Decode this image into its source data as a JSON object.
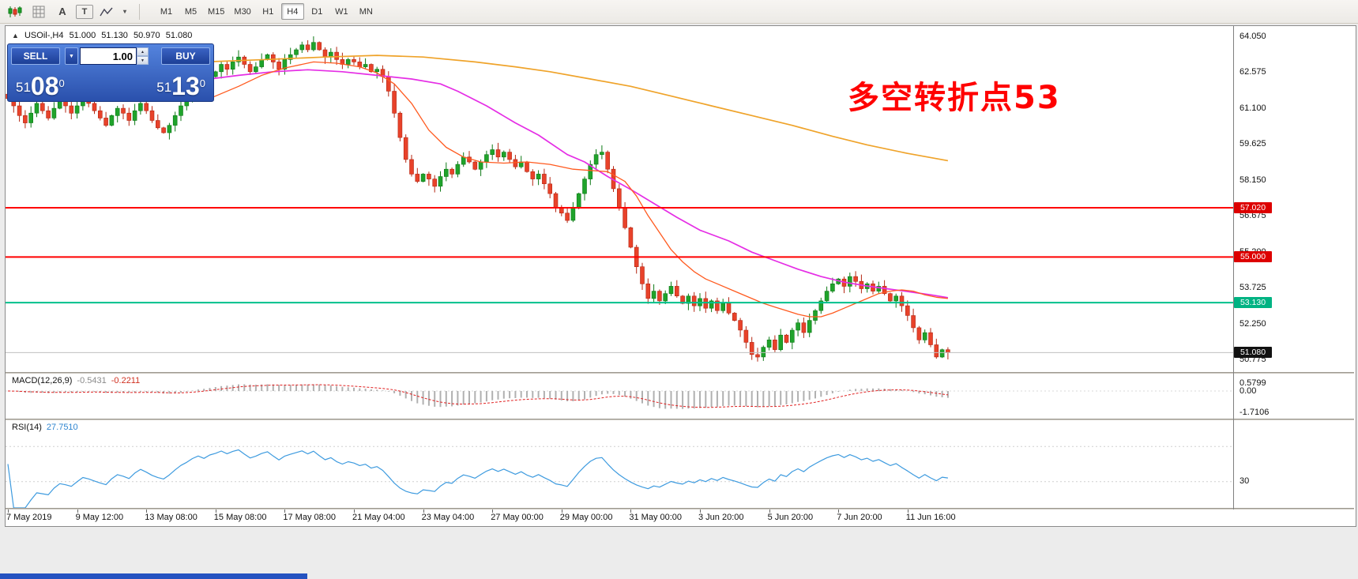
{
  "toolbar": {
    "icons": [
      {
        "name": "candles-icon"
      },
      {
        "name": "grid-icon"
      },
      {
        "name": "text-a-icon",
        "glyph": "A"
      },
      {
        "name": "textbox-t-icon",
        "glyph": "T"
      },
      {
        "name": "line-studies-icon"
      },
      {
        "name": "dropdown-arrow-icon",
        "glyph": "▾"
      }
    ],
    "timeframes": [
      "M1",
      "M5",
      "M15",
      "M30",
      "H1",
      "H4",
      "D1",
      "W1",
      "MN"
    ],
    "active_timeframe": "H4"
  },
  "one_click": {
    "sell_label": "SELL",
    "buy_label": "BUY",
    "volume": "1.00",
    "dropdown_glyph": "▼",
    "spin_up": "▲",
    "spin_down": "▼",
    "sell_small": "51",
    "sell_big": "08",
    "sell_sup": "0",
    "buy_small": "51",
    "buy_big": "13",
    "buy_sup": "0"
  },
  "chart_header": {
    "collapse_glyph": "▲",
    "symbol": "USOil-,H4",
    "open": "51.000",
    "high": "51.130",
    "low": "50.970",
    "close": "51.080"
  },
  "annotation": {
    "text": "多空转折点53",
    "color": "#ff0000"
  },
  "price_axis": {
    "labels": [
      "64.050",
      "62.575",
      "61.100",
      "59.625",
      "58.150",
      "56.675",
      "55.200",
      "53.725",
      "52.250",
      "50.775"
    ]
  },
  "chart_data": {
    "type": "candlestick",
    "symbol": "USOil",
    "timeframe": "H4",
    "up_color": "#1fa32b",
    "up_stroke": "#0e7a16",
    "down_color": "#e8422a",
    "down_stroke": "#b52713",
    "closes": [
      61.5,
      61.2,
      60.8,
      60.5,
      60.9,
      61.3,
      61.0,
      60.7,
      61.1,
      61.4,
      61.2,
      60.9,
      61.2,
      61.5,
      61.3,
      61.0,
      60.7,
      60.4,
      60.8,
      61.1,
      60.9,
      60.6,
      61.0,
      61.3,
      61.0,
      60.6,
      60.3,
      60.1,
      60.4,
      60.8,
      61.2,
      61.5,
      61.9,
      62.2,
      62.0,
      62.4,
      62.6,
      62.9,
      62.7,
      63.0,
      63.2,
      62.9,
      62.6,
      62.8,
      63.1,
      63.3,
      63.0,
      62.7,
      63.1,
      63.3,
      63.5,
      63.7,
      63.5,
      63.8,
      63.5,
      63.2,
      63.4,
      63.1,
      62.9,
      63.1,
      63.0,
      62.8,
      62.9,
      62.6,
      62.7,
      62.4,
      61.8,
      60.9,
      59.9,
      59.0,
      58.4,
      58.1,
      58.4,
      58.2,
      57.9,
      58.3,
      58.6,
      58.4,
      58.8,
      59.1,
      58.9,
      58.6,
      58.9,
      59.2,
      59.4,
      59.1,
      59.3,
      59.0,
      58.7,
      58.9,
      58.5,
      58.2,
      58.4,
      58.0,
      57.6,
      57.0,
      56.8,
      56.5,
      57.0,
      57.6,
      58.2,
      58.8,
      59.2,
      59.3,
      58.6,
      57.8,
      57.0,
      56.2,
      55.4,
      54.6,
      53.9,
      53.3,
      53.6,
      53.2,
      53.5,
      53.8,
      53.4,
      53.1,
      53.4,
      53.0,
      53.3,
      52.9,
      53.2,
      52.8,
      53.1,
      52.7,
      52.4,
      52.0,
      51.5,
      51.0,
      50.9,
      51.3,
      51.6,
      51.2,
      51.8,
      51.5,
      52.0,
      52.3,
      51.9,
      52.4,
      52.8,
      53.2,
      53.6,
      53.9,
      54.1,
      53.8,
      54.2,
      54.0,
      53.7,
      53.9,
      53.6,
      53.8,
      53.5,
      53.2,
      53.4,
      53.0,
      52.6,
      52.1,
      51.6,
      51.9,
      51.4,
      50.9,
      51.2,
      51.08
    ],
    "last_ohlc": {
      "open": 51.0,
      "high": 51.13,
      "low": 50.97,
      "close": 51.08
    },
    "moving_averages": [
      {
        "name": "slow-ma",
        "color": "#efa32a",
        "width": 1.7,
        "points": [
          [
            34,
            63.0
          ],
          [
            45,
            63.1
          ],
          [
            55,
            63.2
          ],
          [
            64,
            63.27
          ],
          [
            72,
            63.2
          ],
          [
            81,
            63.0
          ],
          [
            88,
            62.8
          ],
          [
            94,
            62.6
          ],
          [
            101,
            62.3
          ],
          [
            108,
            62.0
          ],
          [
            115,
            61.6
          ],
          [
            122,
            61.2
          ],
          [
            129,
            60.8
          ],
          [
            136,
            60.4
          ],
          [
            143,
            59.95
          ],
          [
            149,
            59.6
          ],
          [
            156,
            59.25
          ],
          [
            163,
            58.95
          ]
        ]
      },
      {
        "name": "mid-ma",
        "color": "#e52ee5",
        "width": 1.7,
        "points": [
          [
            35,
            62.3
          ],
          [
            40,
            62.45
          ],
          [
            46,
            62.6
          ],
          [
            52,
            62.68
          ],
          [
            58,
            62.6
          ],
          [
            64,
            62.45
          ],
          [
            70,
            62.3
          ],
          [
            75,
            62.1
          ],
          [
            78,
            61.8
          ],
          [
            83,
            61.2
          ],
          [
            88,
            60.5
          ],
          [
            92,
            60.0
          ],
          [
            97,
            59.2
          ],
          [
            100,
            58.9
          ],
          [
            104,
            58.3
          ],
          [
            108,
            57.77
          ],
          [
            112,
            57.2
          ],
          [
            116,
            56.63
          ],
          [
            120,
            56.1
          ],
          [
            125,
            55.66
          ],
          [
            129,
            55.2
          ],
          [
            133,
            54.85
          ],
          [
            137,
            54.5
          ],
          [
            141,
            54.2
          ],
          [
            145,
            53.97
          ],
          [
            149,
            53.81
          ],
          [
            153,
            53.68
          ],
          [
            157,
            53.55
          ],
          [
            160,
            53.45
          ],
          [
            163,
            53.33
          ]
        ]
      },
      {
        "name": "fast-ma",
        "color": "#ff5a1f",
        "width": 1.3,
        "points": [
          [
            35,
            61.5
          ],
          [
            40,
            62.0
          ],
          [
            44,
            62.45
          ],
          [
            48,
            62.75
          ],
          [
            53,
            63.0
          ],
          [
            57,
            62.95
          ],
          [
            61,
            62.8
          ],
          [
            64,
            62.55
          ],
          [
            67,
            62.1
          ],
          [
            70,
            61.3
          ],
          [
            73,
            60.2
          ],
          [
            76,
            59.5
          ],
          [
            79,
            59.1
          ],
          [
            82,
            58.9
          ],
          [
            86,
            58.85
          ],
          [
            90,
            58.9
          ],
          [
            94,
            58.8
          ],
          [
            98,
            58.6
          ],
          [
            101,
            58.55
          ],
          [
            104,
            58.5
          ],
          [
            107,
            58.1
          ],
          [
            109,
            57.5
          ],
          [
            111,
            56.7
          ],
          [
            113,
            56.0
          ],
          [
            115,
            55.3
          ],
          [
            117,
            54.8
          ],
          [
            119,
            54.4
          ],
          [
            121,
            54.1
          ],
          [
            123,
            53.9
          ],
          [
            126,
            53.6
          ],
          [
            129,
            53.3
          ],
          [
            131,
            53.1
          ],
          [
            133,
            52.95
          ],
          [
            135,
            52.8
          ],
          [
            137,
            52.65
          ],
          [
            139,
            52.55
          ],
          [
            141,
            52.55
          ],
          [
            143,
            52.7
          ],
          [
            145,
            52.9
          ],
          [
            147,
            53.1
          ],
          [
            149,
            53.3
          ],
          [
            151,
            53.5
          ],
          [
            153,
            53.6
          ],
          [
            155,
            53.65
          ],
          [
            157,
            53.6
          ],
          [
            159,
            53.45
          ],
          [
            161,
            53.35
          ],
          [
            163,
            53.3
          ]
        ]
      }
    ],
    "levels": [
      {
        "price": 57.02,
        "color": "#ff0000",
        "width": 2,
        "tag": "57.020",
        "tag_bg": "#dd0000"
      },
      {
        "price": 55.0,
        "color": "#ff0000",
        "width": 2,
        "tag": "55.000",
        "tag_bg": "#dd0000"
      },
      {
        "price": 53.13,
        "color": "#00c08b",
        "width": 2,
        "tag": "53.130",
        "tag_bg": "#00b383"
      },
      {
        "price": 51.08,
        "color": "#c0c0c0",
        "width": 1,
        "tag": "51.080",
        "tag_bg": "#111111"
      }
    ],
    "time_labels": [
      {
        "idx": 0,
        "text": "7 May 2019"
      },
      {
        "idx": 12,
        "text": "9 May 12:00"
      },
      {
        "idx": 24,
        "text": "13 May 08:00"
      },
      {
        "idx": 36,
        "text": "15 May 08:00"
      },
      {
        "idx": 48,
        "text": "17 May 08:00"
      },
      {
        "idx": 60,
        "text": "21 May 04:00"
      },
      {
        "idx": 72,
        "text": "23 May 04:00"
      },
      {
        "idx": 84,
        "text": "27 May 00:00"
      },
      {
        "idx": 96,
        "text": "29 May 00:00"
      },
      {
        "idx": 108,
        "text": "31 May 00:00"
      },
      {
        "idx": 120,
        "text": "3 Jun 20:00"
      },
      {
        "idx": 132,
        "text": "5 Jun 20:00"
      },
      {
        "idx": 144,
        "text": "7 Jun 20:00"
      },
      {
        "idx": 156,
        "text": "11 Jun 16:00"
      }
    ]
  },
  "macd": {
    "name": "MACD(12,26,9)",
    "value_main": "-0.5431",
    "value_signal": "-0.2211",
    "axis_labels": [
      "0.5799",
      "0.00",
      "-1.7106"
    ],
    "hist_color": "#b0b0b0",
    "signal_color": "#e02020",
    "params": {
      "fast": 12,
      "slow": 26,
      "signal": 9
    }
  },
  "rsi": {
    "name": "RSI(14)",
    "value": "27.7510",
    "period": 14,
    "axis_labels": [
      "30"
    ],
    "levels": [
      70,
      30
    ],
    "line_color": "#3e9bdf"
  }
}
